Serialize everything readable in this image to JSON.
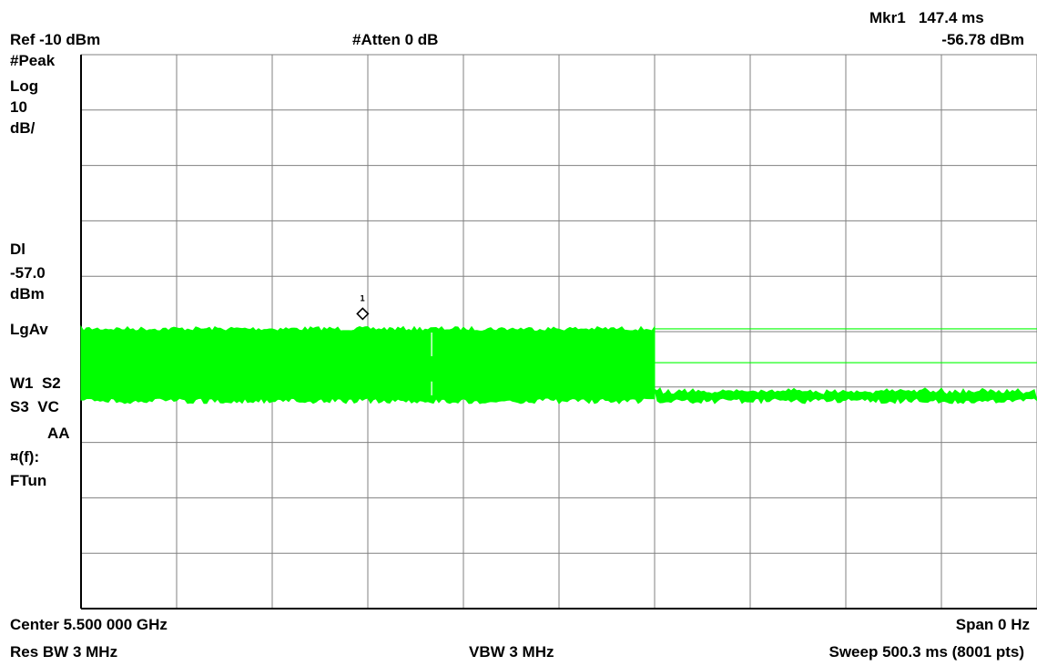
{
  "header": {
    "marker_readout_label": "Mkr1",
    "marker_readout_time": "147.4 ms",
    "marker_readout_level": "-56.78 dBm",
    "ref_level": "Ref -10 dBm",
    "attenuation": "#Atten 0 dB"
  },
  "side_panel": {
    "detector": "#Peak",
    "scale_type": "Log",
    "scale_value": "10",
    "scale_unit": "dB/",
    "display_line_label": "Dl",
    "display_line_value": "-57.0",
    "display_line_unit": "dBm",
    "averaging": "LgAv",
    "trace_w1_s2": "W1  S2",
    "trace_s3_vc": "S3  VC",
    "trace_aa": "AA",
    "freq_func": "¤(f):",
    "freq_tune": "FTun"
  },
  "footer": {
    "center": "Center 5.500 000 GHz",
    "span": "Span 0 Hz",
    "res_bw": "Res BW 3 MHz",
    "vbw": "VBW 3 MHz",
    "sweep": "Sweep 500.3 ms (8001 pts)"
  },
  "chart_data": {
    "type": "line",
    "x_range_ms": [
      0,
      500.3
    ],
    "ref_level_dbm": -10,
    "scale_db_per_div": 10,
    "y_range_dbm": [
      -110,
      -10
    ],
    "grid": true,
    "vertical_divisions": 10,
    "horizontal_divisions": 10,
    "display_line_dbm": -57.0,
    "trace_color": "#00ff00",
    "series": [
      {
        "segments": [
          {
            "x_start_ms": 0,
            "x_end_ms": 300.2,
            "top_dbm": -59.5,
            "bottom_dbm": -72.5
          },
          {
            "x_start_ms": 300.2,
            "x_end_ms": 500.3,
            "top_dbm": -71.0,
            "bottom_dbm": -72.5
          }
        ]
      }
    ],
    "reference_lines_dbm": [
      -59.5,
      -65.6
    ],
    "reference_lines_start_ms": 300.2,
    "marker": {
      "label": "1",
      "x_ms": 147.4,
      "y_dbm": -56.78
    }
  }
}
